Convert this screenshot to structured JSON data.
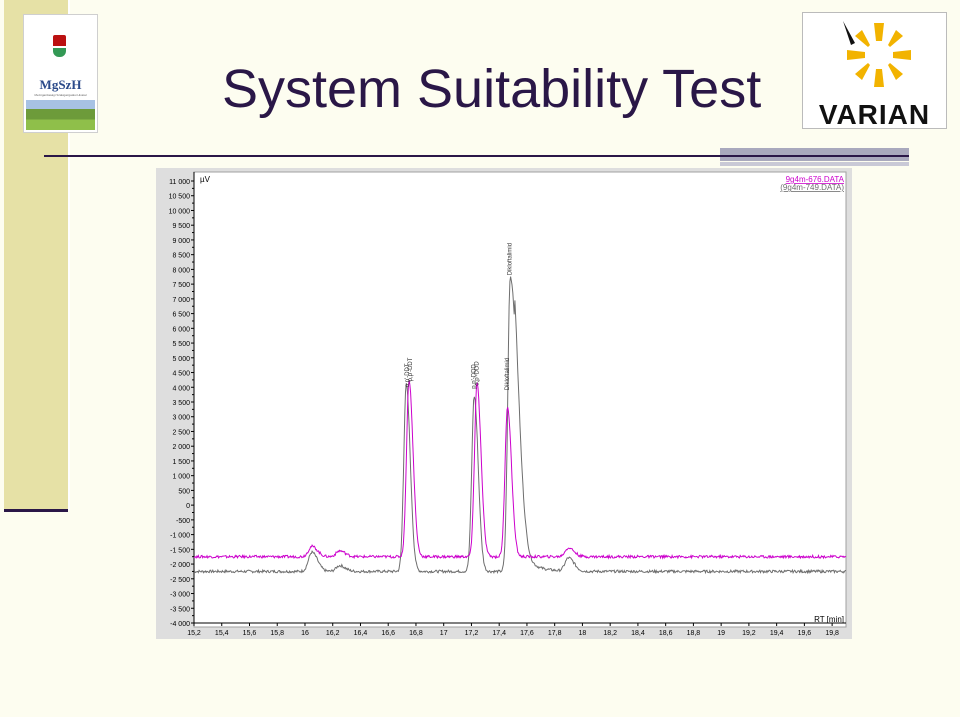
{
  "slide": {
    "title": "System Suitability Test",
    "logo_left_text": "MgSzH",
    "logo_left_tagline": "Mezőgazdasági Szakigazgatási Hivatal",
    "logo_right_text": "VARIAN"
  },
  "colors": {
    "title": "#2a1747",
    "magenta_trace": "#cc00cc",
    "grey_trace": "#6e6e6e",
    "sidebar": "#e6e1a6"
  },
  "chart_data": {
    "type": "line",
    "ylabel": "µV",
    "xlabel": "RT [min]",
    "xlim": [
      15.2,
      19.9
    ],
    "ylim": [
      -4000,
      11000
    ],
    "grid": false,
    "legend_position": "top-right",
    "x_ticks": [
      "15,2",
      "15,4",
      "15,6",
      "15,8",
      "16",
      "16,2",
      "16,4",
      "16,6",
      "16,8",
      "17",
      "17,2",
      "17,4",
      "17,6",
      "17,8",
      "18",
      "18,2",
      "18,4",
      "18,6",
      "18,8",
      "19",
      "19,2",
      "19,4",
      "19,6",
      "19,8"
    ],
    "y_ticks": [
      "11 000",
      "10 500",
      "10 000",
      "9 500",
      "9 000",
      "8 500",
      "8 000",
      "7 500",
      "7 000",
      "6 500",
      "6 000",
      "5 500",
      "5 000",
      "4 500",
      "4 000",
      "3 500",
      "3 000",
      "2 500",
      "2 000",
      "1 500",
      "1 000",
      "500",
      "0",
      "-500",
      "-1 000",
      "-1 500",
      "-2 000",
      "-2 500",
      "-3 000",
      "-3 500",
      "-4 000"
    ],
    "series": [
      {
        "name": "9g4m-676.DATA",
        "color": "#cc00cc",
        "baseline": -1750,
        "peaks": [
          [
            16.05,
            350
          ],
          [
            16.25,
            200
          ],
          [
            16.75,
            6000
          ],
          [
            17.24,
            5900
          ],
          [
            17.46,
            5100
          ],
          [
            17.9,
            300
          ]
        ]
      },
      {
        "name": "(9g4m-749.DATA)",
        "color": "#6e6e6e",
        "baseline": -2250,
        "peaks": [
          [
            16.05,
            650
          ],
          [
            16.25,
            200
          ],
          [
            16.73,
            6350
          ],
          [
            17.22,
            5950
          ],
          [
            17.48,
            10000
          ],
          [
            17.9,
            450
          ]
        ]
      }
    ],
    "peak_labels": [
      {
        "x": 16.75,
        "y": 4000,
        "text": "o,p'-DDT"
      },
      {
        "x": 16.77,
        "y": 4200,
        "text": "p,p'-DDT"
      },
      {
        "x": 17.23,
        "y": 3950,
        "text": "p,p'-DDD"
      },
      {
        "x": 17.25,
        "y": 4050,
        "text": "o,p'-DDD"
      },
      {
        "x": 17.47,
        "y": 3900,
        "text": "Dikloftalimid"
      },
      {
        "x": 17.49,
        "y": 7800,
        "text": "Dikloftalimid"
      }
    ]
  }
}
